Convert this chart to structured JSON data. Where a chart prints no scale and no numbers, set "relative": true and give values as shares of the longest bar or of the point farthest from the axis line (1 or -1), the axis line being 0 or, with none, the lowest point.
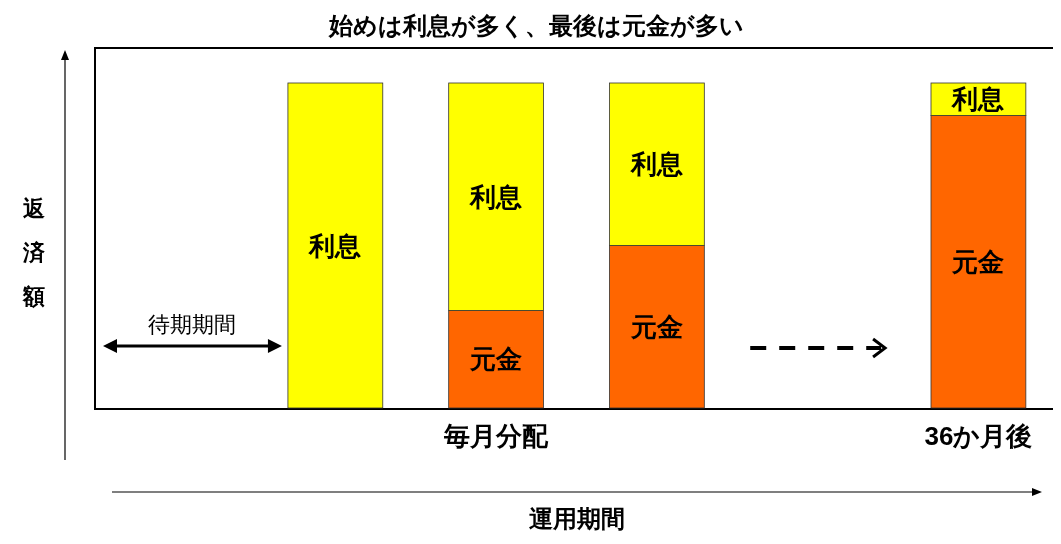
{
  "chart_data": {
    "type": "bar",
    "title": "始めは利息が多く、最後は元金が多い",
    "xlabel": "運用期間",
    "ylabel": "返済額",
    "categories": [
      null,
      null,
      "毎月分配",
      null,
      null,
      "36か月後"
    ],
    "relative": true,
    "stacked": true,
    "series": [
      {
        "name": "元金",
        "color": "#ff6600",
        "values": [
          null,
          0,
          0.3,
          0.5,
          null,
          0.9
        ]
      },
      {
        "name": "利息",
        "color": "#ffff00",
        "values": [
          null,
          1,
          0.7,
          0.5,
          null,
          0.1
        ]
      }
    ],
    "annotations": [
      "待期期間"
    ]
  }
}
